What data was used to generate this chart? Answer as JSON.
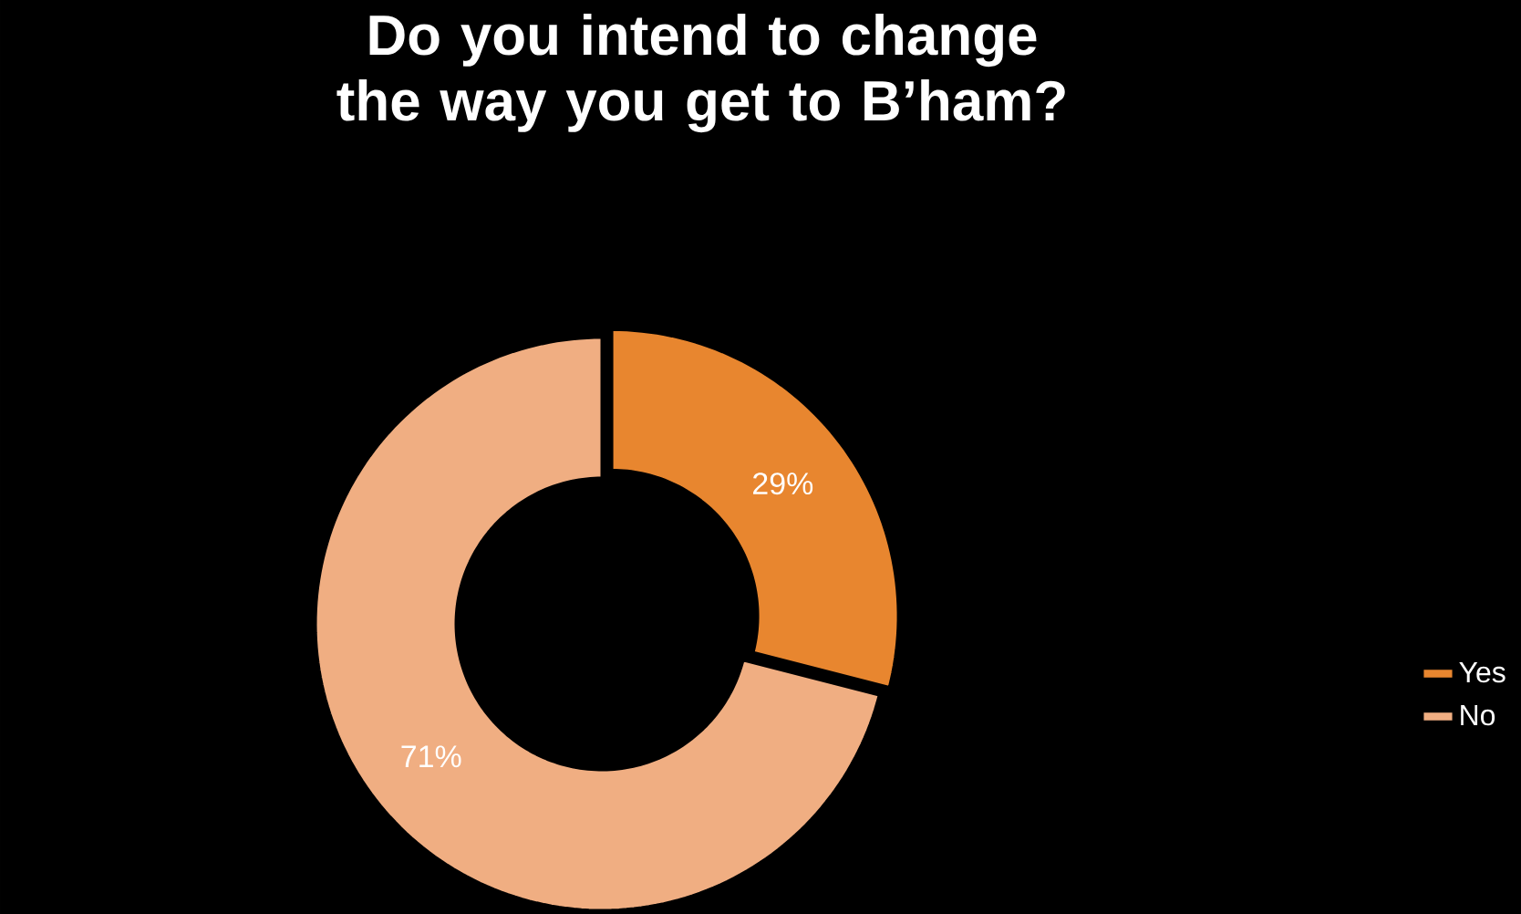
{
  "chart_data": {
    "type": "donut",
    "title": "Do you intend to change the way you get to B’ham?",
    "categories": [
      "Yes",
      "No"
    ],
    "values": [
      29,
      71
    ],
    "colors": [
      "#e8862f",
      "#f0ae82"
    ],
    "value_labels": [
      "29%",
      "71%"
    ],
    "legend": "right"
  }
}
